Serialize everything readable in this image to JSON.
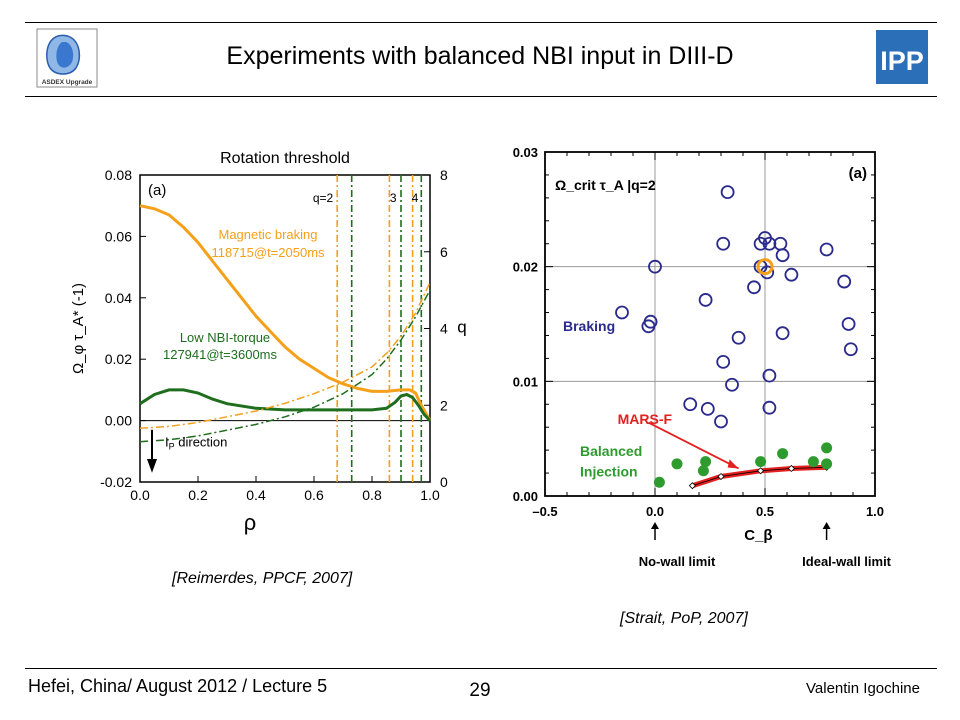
{
  "slide": {
    "title": "Experiments with balanced NBI input in DIII-D",
    "logo_left_text": "ASDEX Upgrade",
    "logo_right_text": "IPP",
    "citation_left": "[Reimerdes, PPCF, 2007]",
    "citation_right": "[Strait, PoP, 2007]",
    "footer_left": "Hefei, China/ August 2012 / Lecture 5",
    "page_number": "29",
    "footer_right": "Valentin Igochine"
  },
  "colors": {
    "orange": "#f5a01a",
    "green": "#1e6e1e",
    "navy": "#2a2a8c",
    "red": "#e4201e",
    "marker_green": "#2e9b2e"
  },
  "chart_data": [
    {
      "type": "line",
      "title": "Rotation threshold",
      "panel_label": "(a)",
      "xlabel": "ρ",
      "ylabel": "Ω_φ τ_A* (-1)",
      "ylabel_right": "q",
      "xlim": [
        0,
        1.0
      ],
      "ylim": [
        -0.02,
        0.08
      ],
      "ylim_right": [
        0,
        8
      ],
      "xticks": [
        "0.0",
        "0.2",
        "0.4",
        "0.6",
        "0.8",
        "1.0"
      ],
      "yticks": [
        "-0.02",
        "0.00",
        "0.02",
        "0.04",
        "0.06",
        "0.08"
      ],
      "yticks_right": [
        "0",
        "2",
        "4",
        "6",
        "8"
      ],
      "series": [
        {
          "name": "Magnetic braking",
          "shot": "118715@t=2050ms",
          "color": "orange",
          "style": "solid",
          "x": [
            0,
            0.05,
            0.1,
            0.15,
            0.2,
            0.25,
            0.3,
            0.35,
            0.4,
            0.45,
            0.5,
            0.55,
            0.6,
            0.65,
            0.7,
            0.75,
            0.8,
            0.85,
            0.9,
            0.93,
            0.95,
            0.97,
            1.0
          ],
          "y": [
            0.07,
            0.069,
            0.067,
            0.063,
            0.058,
            0.052,
            0.046,
            0.04,
            0.034,
            0.029,
            0.024,
            0.02,
            0.017,
            0.014,
            0.012,
            0.0105,
            0.0095,
            0.0095,
            0.01,
            0.01,
            0.009,
            0.005,
            0.0
          ]
        },
        {
          "name": "Low NBI-torque",
          "shot": "127941@t=3600ms",
          "color": "green",
          "style": "solid",
          "x": [
            0,
            0.05,
            0.1,
            0.15,
            0.2,
            0.25,
            0.3,
            0.4,
            0.5,
            0.6,
            0.7,
            0.8,
            0.85,
            0.88,
            0.9,
            0.92,
            0.94,
            0.96,
            0.98,
            1.0
          ],
          "y": [
            0.0055,
            0.0085,
            0.01,
            0.01,
            0.009,
            0.007,
            0.0055,
            0.004,
            0.0035,
            0.0035,
            0.0035,
            0.0035,
            0.004,
            0.006,
            0.008,
            0.0085,
            0.0075,
            0.005,
            0.002,
            0.0
          ]
        },
        {
          "name": "q (magnetic braking)",
          "axis": "right",
          "color": "orange",
          "style": "dashdot",
          "x": [
            0,
            0.1,
            0.2,
            0.3,
            0.4,
            0.5,
            0.6,
            0.7,
            0.8,
            0.85,
            0.9,
            0.95,
            1.0
          ],
          "y": [
            1.4,
            1.45,
            1.55,
            1.7,
            1.85,
            2.05,
            2.3,
            2.6,
            3.0,
            3.35,
            3.8,
            4.4,
            5.2
          ]
        },
        {
          "name": "q (low NBI-torque)",
          "axis": "right",
          "color": "green",
          "style": "dashdot",
          "x": [
            0,
            0.1,
            0.2,
            0.3,
            0.4,
            0.5,
            0.6,
            0.7,
            0.8,
            0.85,
            0.9,
            0.95,
            1.0
          ],
          "y": [
            1.05,
            1.1,
            1.2,
            1.35,
            1.5,
            1.7,
            1.95,
            2.3,
            2.8,
            3.2,
            3.7,
            4.3,
            5.0
          ]
        }
      ],
      "q_surfaces": [
        {
          "label": "q=2",
          "x_orange": 0.68,
          "x_green": 0.73
        },
        {
          "label": "3",
          "x_orange": 0.86,
          "x_green": 0.9
        },
        {
          "label": "4",
          "x_orange": 0.94,
          "x_green": 0.97
        }
      ],
      "annotation": {
        "label": "I",
        "subscript": "P",
        "rest": " direction"
      }
    },
    {
      "type": "scatter",
      "panel_label": "(a)",
      "ylabel": "Ω_crit τ_A |q=2",
      "xlabel": "C_β",
      "xlim": [
        -0.5,
        1.0
      ],
      "ylim": [
        0.0,
        0.03
      ],
      "xticks": [
        "–0.5",
        "0.0",
        "0.5",
        "1.0"
      ],
      "yticks": [
        "0.00",
        "0.01",
        "0.02",
        "0.03"
      ],
      "annotations": {
        "braking": "Braking",
        "mars": "MARS-F",
        "balanced_1": "Balanced",
        "balanced_2": "Injection",
        "no_wall": "No-wall limit",
        "ideal_wall": "Ideal-wall limit"
      },
      "braking_points": [
        [
          0.33,
          0.0265
        ],
        [
          0.31,
          0.022
        ],
        [
          0.48,
          0.022
        ],
        [
          0.5,
          0.0225
        ],
        [
          0.52,
          0.022
        ],
        [
          0.57,
          0.022
        ],
        [
          0.58,
          0.021
        ],
        [
          0.78,
          0.0215
        ],
        [
          0.0,
          0.02
        ],
        [
          0.48,
          0.02
        ],
        [
          0.51,
          0.0195
        ],
        [
          0.62,
          0.0193
        ],
        [
          0.45,
          0.0182
        ],
        [
          0.86,
          0.0187
        ],
        [
          0.23,
          0.0171
        ],
        [
          -0.15,
          0.016
        ],
        [
          -0.03,
          0.0148
        ],
        [
          -0.02,
          0.0152
        ],
        [
          0.88,
          0.015
        ],
        [
          0.58,
          0.0142
        ],
        [
          0.38,
          0.0138
        ],
        [
          0.89,
          0.0128
        ],
        [
          0.31,
          0.0117
        ],
        [
          0.52,
          0.0105
        ],
        [
          0.35,
          0.0097
        ],
        [
          0.16,
          0.008
        ],
        [
          0.24,
          0.0076
        ],
        [
          0.52,
          0.0077
        ],
        [
          0.3,
          0.0065
        ]
      ],
      "highlight_point": [
        0.5,
        0.02
      ],
      "balanced_points": [
        [
          0.02,
          0.0012
        ],
        [
          0.1,
          0.0028
        ],
        [
          0.23,
          0.003
        ],
        [
          0.22,
          0.0022
        ],
        [
          0.48,
          0.003
        ],
        [
          0.58,
          0.0037
        ],
        [
          0.72,
          0.003
        ],
        [
          0.78,
          0.0042
        ],
        [
          0.78,
          0.0028
        ]
      ],
      "mars_curve": {
        "x": [
          0.17,
          0.3,
          0.48,
          0.62,
          0.78
        ],
        "y": [
          0.0009,
          0.0017,
          0.0022,
          0.0024,
          0.0025
        ]
      }
    }
  ]
}
